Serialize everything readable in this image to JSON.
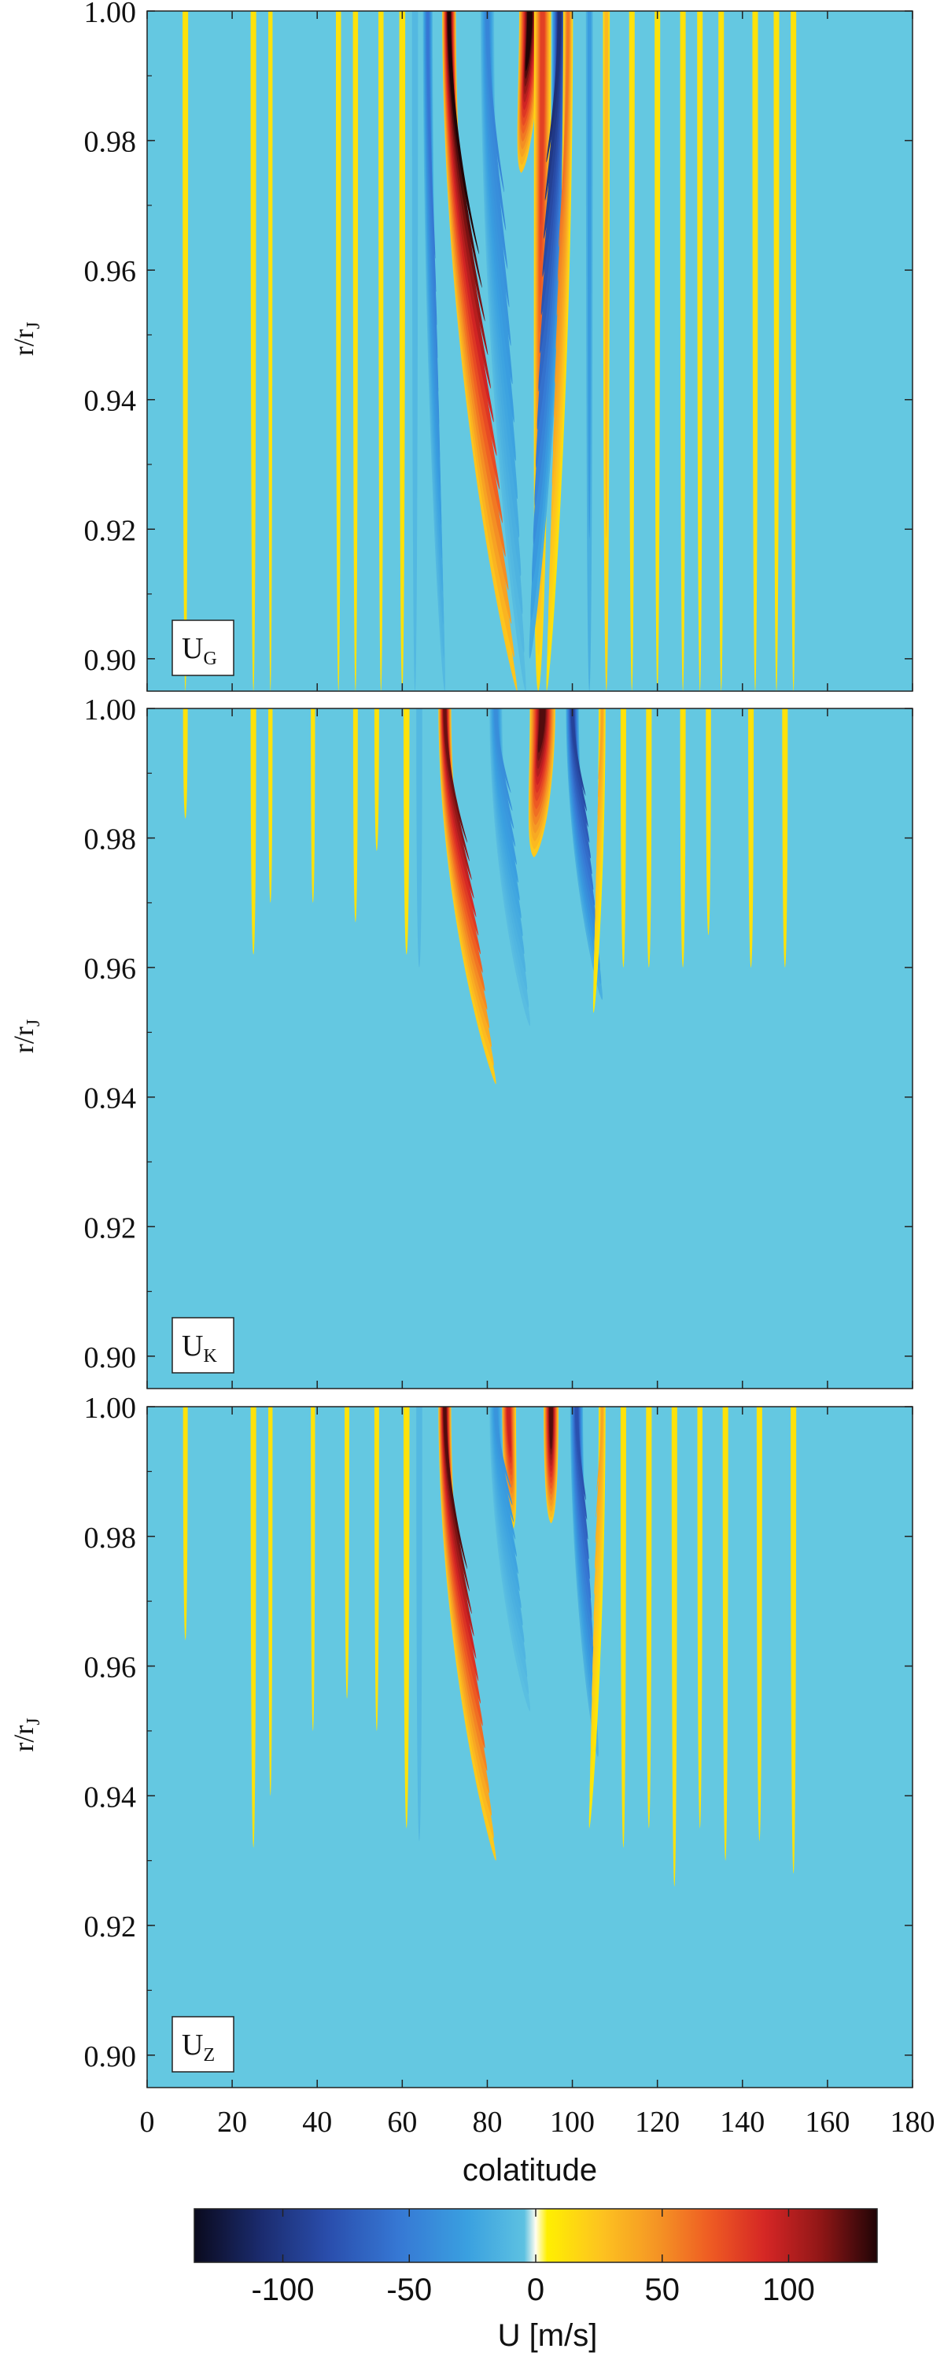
{
  "chart_data": {
    "type": "heatmap",
    "panels": [
      {
        "label_main": "U",
        "label_sub": "G",
        "ylabel_main": "r/r",
        "ylabel_sub": "J",
        "xlim": [
          0,
          180
        ],
        "ylim": [
          0.895,
          1.0
        ],
        "yticks": [
          "0.90",
          "0.92",
          "0.94",
          "0.96",
          "0.98",
          "1.00"
        ],
        "bands": [
          {
            "c": 9,
            "w": 1.3,
            "v": 20,
            "bot": 0.895
          },
          {
            "c": 25,
            "w": 1.3,
            "v": 20,
            "bot": 0.895
          },
          {
            "c": 29,
            "w": 1.0,
            "v": 20,
            "bot": 0.895
          },
          {
            "c": 45,
            "w": 1.2,
            "v": 20,
            "bot": 0.895
          },
          {
            "c": 49,
            "w": 1.2,
            "v": 20,
            "bot": 0.895
          },
          {
            "c": 55,
            "w": 1.2,
            "v": 20,
            "bot": 0.895
          },
          {
            "c": 60,
            "w": 1.4,
            "v": 20,
            "bot": 0.895
          },
          {
            "c": 63,
            "w": 1.4,
            "v": -20,
            "bot": 0.895
          },
          {
            "c": 104,
            "w": 1.6,
            "v": -30,
            "bot": 0.895
          },
          {
            "c": 108,
            "w": 1.6,
            "v": 30,
            "bot": 0.895
          },
          {
            "c": 114,
            "w": 1.3,
            "v": 20,
            "bot": 0.895
          },
          {
            "c": 120,
            "w": 1.3,
            "v": 20,
            "bot": 0.895
          },
          {
            "c": 126,
            "w": 1.3,
            "v": 20,
            "bot": 0.895
          },
          {
            "c": 130,
            "w": 1.3,
            "v": 20,
            "bot": 0.895
          },
          {
            "c": 135,
            "w": 1.3,
            "v": 20,
            "bot": 0.895
          },
          {
            "c": 143,
            "w": 1.3,
            "v": 20,
            "bot": 0.895
          },
          {
            "c": 148,
            "w": 1.3,
            "v": 20,
            "bot": 0.895
          },
          {
            "c": 152,
            "w": 1.3,
            "v": 20,
            "bot": 0.895
          }
        ],
        "cores": [
          {
            "top": 71,
            "bot": 87,
            "w": 3.2,
            "v": 135,
            "ybot": 0.895,
            "zmin": 0.88
          },
          {
            "top": 90,
            "bot": 88,
            "w": 5.0,
            "v": 135,
            "ybot": 0.975,
            "zmin": 0.92
          },
          {
            "top": 93,
            "bot": 92,
            "w": 4.0,
            "v": 80,
            "ybot": 0.895,
            "zmin": 0.75
          },
          {
            "top": 80,
            "bot": 89,
            "w": 3.2,
            "v": -45,
            "ybot": 0.895,
            "zmin": 0.6
          },
          {
            "top": 97,
            "bot": 90,
            "w": 3.4,
            "v": -105,
            "ybot": 0.9,
            "zmin": 0.5
          },
          {
            "top": 66,
            "bot": 70,
            "w": 2.3,
            "v": -55,
            "ybot": 0.895,
            "zmin": 0.9
          },
          {
            "top": 99,
            "bot": 94,
            "w": 2.3,
            "v": 60,
            "ybot": 0.895,
            "zmin": 0.85
          }
        ]
      },
      {
        "label_main": "U",
        "label_sub": "K",
        "ylabel_main": "r/r",
        "ylabel_sub": "J",
        "xlim": [
          0,
          180
        ],
        "ylim": [
          0.895,
          1.0
        ],
        "yticks": [
          "0.90",
          "0.92",
          "0.94",
          "0.96",
          "0.98",
          "1.00"
        ],
        "bands": [
          {
            "c": 9,
            "w": 1.1,
            "v": 20,
            "bot": 0.983
          },
          {
            "c": 25,
            "w": 1.3,
            "v": 20,
            "bot": 0.962
          },
          {
            "c": 29,
            "w": 1.0,
            "v": 20,
            "bot": 0.97
          },
          {
            "c": 39,
            "w": 1.0,
            "v": 20,
            "bot": 0.97
          },
          {
            "c": 49,
            "w": 1.1,
            "v": 20,
            "bot": 0.967
          },
          {
            "c": 54,
            "w": 1.1,
            "v": 20,
            "bot": 0.978
          },
          {
            "c": 61,
            "w": 1.4,
            "v": 20,
            "bot": 0.962
          },
          {
            "c": 64,
            "w": 1.4,
            "v": -20,
            "bot": 0.96
          },
          {
            "c": 112,
            "w": 1.3,
            "v": 20,
            "bot": 0.96
          },
          {
            "c": 118,
            "w": 1.3,
            "v": 20,
            "bot": 0.96
          },
          {
            "c": 126,
            "w": 1.3,
            "v": 20,
            "bot": 0.96
          },
          {
            "c": 132,
            "w": 1.2,
            "v": 20,
            "bot": 0.965
          },
          {
            "c": 142,
            "w": 1.3,
            "v": 20,
            "bot": 0.96
          },
          {
            "c": 150,
            "w": 1.3,
            "v": 20,
            "bot": 0.96
          }
        ],
        "cores": [
          {
            "top": 70,
            "bot": 82,
            "w": 3.0,
            "v": 120,
            "ybot": 0.942,
            "zmin": 0.88
          },
          {
            "top": 93,
            "bot": 91,
            "w": 6.0,
            "v": 125,
            "ybot": 0.977,
            "zmin": 0.7
          },
          {
            "top": 100,
            "bot": 107,
            "w": 3.0,
            "v": -90,
            "ybot": 0.955,
            "zmin": 0.7
          },
          {
            "top": 82,
            "bot": 90,
            "w": 3.0,
            "v": -40,
            "ybot": 0.951,
            "zmin": 0.6
          },
          {
            "top": 107,
            "bot": 105,
            "w": 1.6,
            "v": 40,
            "ybot": 0.953,
            "zmin": 0.5
          }
        ]
      },
      {
        "label_main": "U",
        "label_sub": "Z",
        "ylabel_main": "r/r",
        "ylabel_sub": "J",
        "xlim": [
          0,
          180
        ],
        "ylim": [
          0.895,
          1.0
        ],
        "yticks": [
          "0.90",
          "0.92",
          "0.94",
          "0.96",
          "0.98",
          "1.00"
        ],
        "bands": [
          {
            "c": 9,
            "w": 1.1,
            "v": 20,
            "bot": 0.964
          },
          {
            "c": 25,
            "w": 1.3,
            "v": 20,
            "bot": 0.932
          },
          {
            "c": 29,
            "w": 1.0,
            "v": 20,
            "bot": 0.94
          },
          {
            "c": 39,
            "w": 1.0,
            "v": 20,
            "bot": 0.95
          },
          {
            "c": 47,
            "w": 1.1,
            "v": 20,
            "bot": 0.955
          },
          {
            "c": 54,
            "w": 1.1,
            "v": 20,
            "bot": 0.95
          },
          {
            "c": 61,
            "w": 1.4,
            "v": 20,
            "bot": 0.935
          },
          {
            "c": 64,
            "w": 1.4,
            "v": -20,
            "bot": 0.933
          },
          {
            "c": 112,
            "w": 1.3,
            "v": 20,
            "bot": 0.932
          },
          {
            "c": 118,
            "w": 1.3,
            "v": 20,
            "bot": 0.935
          },
          {
            "c": 124,
            "w": 1.3,
            "v": 20,
            "bot": 0.926
          },
          {
            "c": 130,
            "w": 1.2,
            "v": 20,
            "bot": 0.935
          },
          {
            "c": 136,
            "w": 1.3,
            "v": 20,
            "bot": 0.93
          },
          {
            "c": 144,
            "w": 1.3,
            "v": 20,
            "bot": 0.933
          },
          {
            "c": 152,
            "w": 1.3,
            "v": 20,
            "bot": 0.928
          }
        ],
        "cores": [
          {
            "top": 70,
            "bot": 82,
            "w": 3.0,
            "v": 125,
            "ybot": 0.93,
            "zmin": 0.88
          },
          {
            "top": 85,
            "bot": 86,
            "w": 3.5,
            "v": 95,
            "ybot": 0.981,
            "zmin": 0.9
          },
          {
            "top": 95,
            "bot": 95,
            "w": 3.5,
            "v": 125,
            "ybot": 0.982,
            "zmin": 0.9
          },
          {
            "top": 101,
            "bot": 106,
            "w": 3.0,
            "v": -80,
            "ybot": 0.946,
            "zmin": 0.6
          },
          {
            "top": 82,
            "bot": 90,
            "w": 3.0,
            "v": -35,
            "ybot": 0.953,
            "zmin": 0.6
          },
          {
            "top": 107,
            "bot": 104,
            "w": 1.6,
            "v": 40,
            "ybot": 0.935,
            "zmin": 0.4
          }
        ]
      }
    ],
    "xticks": [
      "0",
      "20",
      "40",
      "60",
      "80",
      "100",
      "120",
      "140",
      "160",
      "180"
    ],
    "xlabel": "colatitude",
    "colorbar": {
      "range": [
        -135,
        135
      ],
      "ticks": [
        "-100",
        "-50",
        "0",
        "50",
        "100"
      ],
      "tick_values": [
        -100,
        -50,
        0,
        50,
        100
      ],
      "label": "U [m/s]"
    },
    "colors": {
      "background": "#64c8e1",
      "negative_ramp": [
        "#64c8e1",
        "#3aa0e0",
        "#3678d4",
        "#2a4fae",
        "#1b2c70",
        "#0a0a1e"
      ],
      "positive_ramp": [
        "#fff000",
        "#fdc320",
        "#f59624",
        "#ee5a23",
        "#d42525",
        "#8e1616",
        "#200406"
      ]
    }
  }
}
